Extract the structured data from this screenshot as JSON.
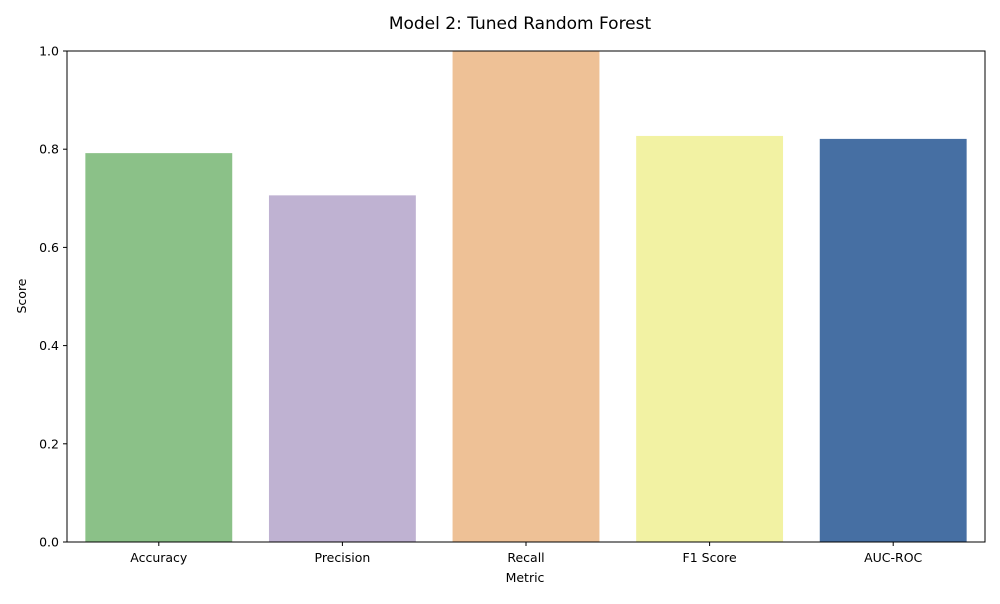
{
  "chart_data": {
    "type": "bar",
    "title": "Model 2: Tuned Random Forest",
    "xlabel": "Metric",
    "ylabel": "Score",
    "categories": [
      "Accuracy",
      "Precision",
      "Recall",
      "F1 Score",
      "AUC-ROC"
    ],
    "values": [
      0.792,
      0.706,
      1.0,
      0.827,
      0.821
    ],
    "colors": [
      "#8bc188",
      "#bfb2d2",
      "#eec196",
      "#f2f2a3",
      "#466fa3"
    ],
    "ylim": [
      0,
      1.0
    ],
    "yticks": [
      0.0,
      0.2,
      0.4,
      0.6,
      0.8,
      1.0
    ],
    "ytick_labels": [
      "0.0",
      "0.2",
      "0.4",
      "0.6",
      "0.8",
      "1.0"
    ],
    "grid": false,
    "legend": "none"
  }
}
